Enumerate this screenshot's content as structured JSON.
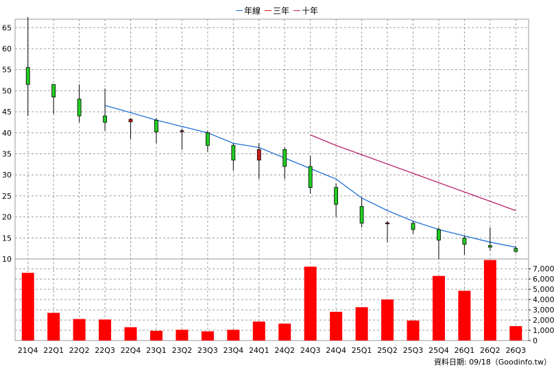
{
  "chart_data": {
    "type": "candlestick",
    "legend": [
      {
        "name": "年線",
        "color": "#1f6fd6"
      },
      {
        "name": "三年",
        "color": "#cc1a1a"
      },
      {
        "name": "十年",
        "color": "#b8206a"
      }
    ],
    "categories": [
      "21Q4",
      "22Q1",
      "22Q2",
      "22Q3",
      "22Q4",
      "23Q1",
      "23Q2",
      "23Q3",
      "23Q4",
      "24Q1",
      "24Q2",
      "24Q3",
      "24Q4",
      "25Q1",
      "25Q2",
      "25Q3",
      "25Q4",
      "26Q1",
      "26Q2",
      "26Q3"
    ],
    "candles": [
      {
        "open": 51.5,
        "close": 55.5,
        "high": 67.5,
        "low": 44.0
      },
      {
        "open": 48.5,
        "close": 51.5,
        "high": 51.5,
        "low": 44.5
      },
      {
        "open": 44.0,
        "close": 48.0,
        "high": 51.5,
        "low": 42.5
      },
      {
        "open": 42.5,
        "close": 44.0,
        "high": 50.5,
        "low": 40.5
      },
      {
        "open": 43.2,
        "close": 42.6,
        "high": 43.5,
        "low": 38.5
      },
      {
        "open": 40.2,
        "close": 43.0,
        "high": 43.5,
        "low": 37.5
      },
      {
        "open": 40.5,
        "close": 40.3,
        "high": 41.0,
        "low": 36.0
      },
      {
        "open": 37.0,
        "close": 40.0,
        "high": 40.5,
        "low": 35.5
      },
      {
        "open": 33.5,
        "close": 37.0,
        "high": 37.5,
        "low": 31.0
      },
      {
        "open": 36.0,
        "close": 33.5,
        "high": 37.5,
        "low": 29.0
      },
      {
        "open": 32.0,
        "close": 36.0,
        "high": 36.5,
        "low": 29.0
      },
      {
        "open": 27.0,
        "close": 32.0,
        "high": 34.5,
        "low": 25.5
      },
      {
        "open": 23.0,
        "close": 27.0,
        "high": 28.0,
        "low": 20.0
      },
      {
        "open": 18.5,
        "close": 22.5,
        "high": 24.5,
        "low": 17.5
      },
      {
        "open": 18.6,
        "close": 18.4,
        "high": 19.0,
        "low": 14.0
      },
      {
        "open": 17.0,
        "close": 18.5,
        "high": 19.0,
        "low": 16.0
      },
      {
        "open": 14.5,
        "close": 17.0,
        "high": 17.5,
        "low": 10.0
      },
      {
        "open": 13.5,
        "close": 15.0,
        "high": 15.5,
        "low": 11.0
      },
      {
        "open": 12.8,
        "close": 13.2,
        "high": 17.5,
        "low": 12.0
      },
      {
        "open": 11.8,
        "close": 12.5,
        "high": 13.0,
        "low": 11.5
      }
    ],
    "lines": [
      {
        "name": "年線",
        "color": "#1f6fd6",
        "values": [
          null,
          null,
          null,
          46.5,
          44.8,
          43.0,
          41.5,
          40.0,
          37.5,
          36.5,
          34.0,
          31.5,
          29.0,
          24.5,
          21.5,
          19.0,
          17.0,
          15.5,
          14.0,
          12.8
        ]
      },
      {
        "name": "十年",
        "color": "#b8206a",
        "values": [
          null,
          null,
          null,
          null,
          null,
          null,
          null,
          null,
          null,
          null,
          null,
          39.5,
          37.0,
          null,
          null,
          null,
          null,
          null,
          null,
          21.5
        ]
      }
    ],
    "volume": [
      6600,
      2700,
      2100,
      2050,
      1300,
      950,
      1050,
      900,
      1050,
      1850,
      1650,
      7200,
      2800,
      3250,
      4000,
      1950,
      6300,
      4850,
      7850,
      1400
    ],
    "volume_color": "#ff0000",
    "price_ylim": [
      10,
      67
    ],
    "price_ticks": [
      10,
      15,
      20,
      25,
      30,
      35,
      40,
      45,
      50,
      55,
      60,
      65
    ],
    "volume_ylim": [
      0,
      7950
    ],
    "volume_ticks": [
      "0",
      "1,000",
      "2,000",
      "3,000",
      "4,000",
      "5,000",
      "6,000",
      "7,000"
    ],
    "volume_tick_values": [
      0,
      1000,
      2000,
      3000,
      4000,
      5000,
      6000,
      7000
    ],
    "up_color": "#22cc22",
    "down_color": "#cc1a1a",
    "grid": true
  },
  "footer_text": "資料日期: 09/18（Goodinfo.tw）"
}
